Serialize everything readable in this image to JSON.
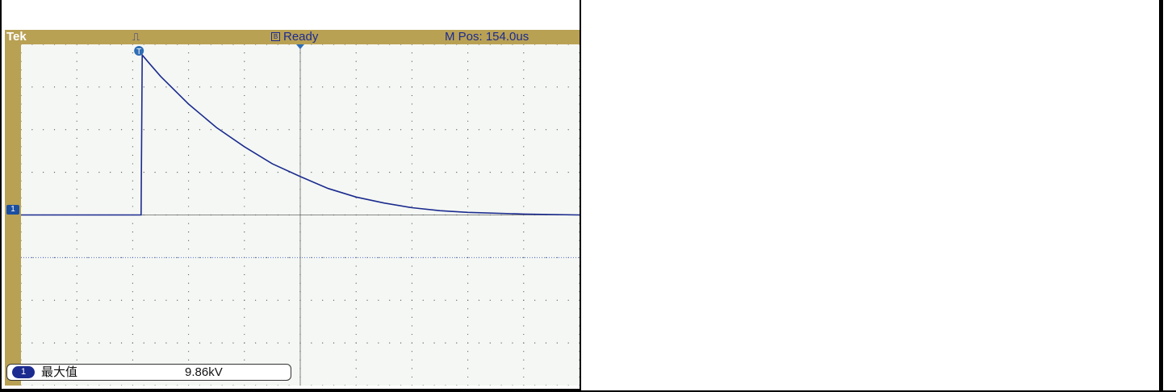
{
  "status": {
    "brand": "Tek",
    "trigger_icon": "pulse-trigger-icon",
    "state": "Ready",
    "m_pos": "M Pos: 154.0us"
  },
  "channel": {
    "marker": "1",
    "color": "#1b2b8f"
  },
  "trigger_marker": "T",
  "measurement": {
    "channel": "1",
    "name": "最大值",
    "value": "9.86kV"
  },
  "colors": {
    "bezel": "#b9a154",
    "screen": "#f4f7f3",
    "trace": "#1b2b8f"
  },
  "chart_data": {
    "type": "line",
    "title": "",
    "xlabel": "",
    "ylabel": "",
    "grid": true,
    "divisions": {
      "x": 10,
      "y": 8
    },
    "series": [
      {
        "x": [
          0,
          1,
          2,
          2.15,
          2.17,
          2.3,
          2.5,
          3,
          3.5,
          4,
          4.5,
          5,
          5.5,
          6,
          6.5,
          7,
          7.5,
          8,
          9,
          10
        ],
        "values": [
          0,
          0,
          0,
          0,
          3.75,
          3.55,
          3.25,
          2.6,
          2.05,
          1.6,
          1.2,
          0.9,
          0.62,
          0.42,
          0.28,
          0.17,
          0.1,
          0.06,
          0.02,
          0.0
        ]
      }
    ],
    "ylim": [
      -4,
      4
    ],
    "xlim": [
      0,
      10
    ]
  }
}
